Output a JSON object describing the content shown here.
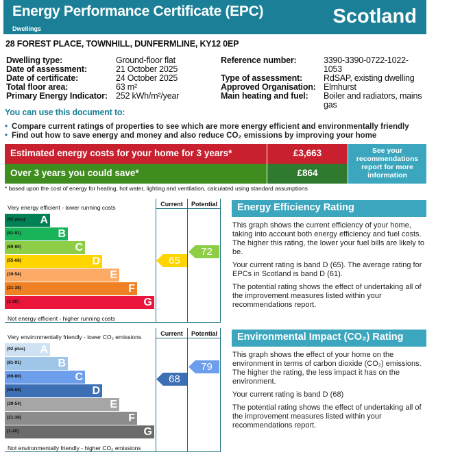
{
  "header": {
    "title": "Energy Performance Certificate (EPC)",
    "subtitle": "Dwellings",
    "region": "Scotland"
  },
  "address": "28 FOREST PLACE, TOWNHILL, DUNFERMLINE, KY12 0EP",
  "details_left": [
    {
      "label": "Dwelling type:",
      "value": "Ground-floor flat"
    },
    {
      "label": "Date of assessment:",
      "value": "21 October 2025"
    },
    {
      "label": "Date of certificate:",
      "value": "24 October 2025"
    },
    {
      "label": "Total floor area:",
      "value": "63 m²"
    },
    {
      "label": "Primary Energy Indicator:",
      "value": "252 kWh/m²/year"
    }
  ],
  "details_right": [
    {
      "label": "Reference number:",
      "value": "3390-3390-0722-1022-1053"
    },
    {
      "label": "Type of assessment:",
      "value": "RdSAP, existing dwelling"
    },
    {
      "label": "Approved Organisation:",
      "value": "Elmhurst"
    },
    {
      "label": "Main heating and fuel:",
      "value": "Boiler and radiators, mains gas"
    }
  ],
  "use": {
    "heading": "You can use this document to:",
    "bullets": [
      "Compare current ratings of properties to see which are more energy efficient and environmentally friendly",
      "Find out how to save energy and money and also reduce CO₂ emissions by improving your home"
    ]
  },
  "costs": {
    "estimated_label": "Estimated energy costs for your home for 3 years*",
    "estimated_value": "£3,663",
    "save_label": "Over 3 years you could save*",
    "save_value": "£864",
    "recommendations": "See your recommendations report for more information",
    "footnote": "* based upon the cost of energy for heating, hot water, lighting and ventilation, calculated using standard assumptions",
    "colors": {
      "red": "#c8202f",
      "green": "#3f8d1e"
    }
  },
  "charts": [
    {
      "top_label": "Very energy efficient - lower running costs",
      "bottom_label": "Not energy efficient - higher running costs",
      "current_header": "Current",
      "potential_header": "Potential",
      "current": 65,
      "potential": 72,
      "bands": [
        {
          "range": "(92 plus)",
          "letter": "A",
          "color": "#008054"
        },
        {
          "range": "(81-91)",
          "letter": "B",
          "color": "#19b459"
        },
        {
          "range": "(69-80)",
          "letter": "C",
          "color": "#8dce46"
        },
        {
          "range": "(55-68)",
          "letter": "D",
          "color": "#ffd500"
        },
        {
          "range": "(39-54)",
          "letter": "E",
          "color": "#fcaa65"
        },
        {
          "range": "(21-38)",
          "letter": "F",
          "color": "#ef8023"
        },
        {
          "range": "(1-20)",
          "letter": "G",
          "color": "#e9153b"
        }
      ],
      "current_color": "#ffd500",
      "potential_color": "#8dce46"
    },
    {
      "top_label": "Very environmentally friendly - lower CO₂ emissions",
      "bottom_label": "Not environmentally friendly - higher CO₂ emissions",
      "current_header": "Current",
      "potential_header": "Potential",
      "current": 68,
      "potential": 79,
      "bands": [
        {
          "range": "(92 plus)",
          "letter": "A",
          "color": "#cfe2f3"
        },
        {
          "range": "(81-91)",
          "letter": "B",
          "color": "#9fc5e8"
        },
        {
          "range": "(69-80)",
          "letter": "C",
          "color": "#6d9eeb"
        },
        {
          "range": "(55-68)",
          "letter": "D",
          "color": "#3d6fb5"
        },
        {
          "range": "(39-54)",
          "letter": "E",
          "color": "#a6a6a6"
        },
        {
          "range": "(21-38)",
          "letter": "F",
          "color": "#8c8c8c"
        },
        {
          "range": "(1-20)",
          "letter": "G",
          "color": "#6b6b6b"
        }
      ],
      "current_color": "#3d6fb5",
      "potential_color": "#6d9eeb"
    }
  ],
  "panels": [
    {
      "heading": "Energy Efficiency Rating",
      "paras": [
        "This graph shows the current efficiency of your home, taking into account both energy efficiency and fuel costs. The higher this rating, the lower your fuel bills are likely to be.",
        "Your current rating is band D (65). The average rating for EPCs in Scotland is band D (61).",
        "The potential rating shows the effect of undertaking all of the improvement measures listed within your recommendations report."
      ]
    },
    {
      "heading": "Environmental Impact (CO₂) Rating",
      "paras": [
        "This graph shows the effect of your home on the environment in terms of carbon dioxide (CO₂) emissions. The higher the rating, the less impact it has on the environment.",
        "Your current rating is band D (68)",
        "The potential rating shows the effect of undertaking all of the improvement measures listed within your recommendations report."
      ]
    }
  ]
}
